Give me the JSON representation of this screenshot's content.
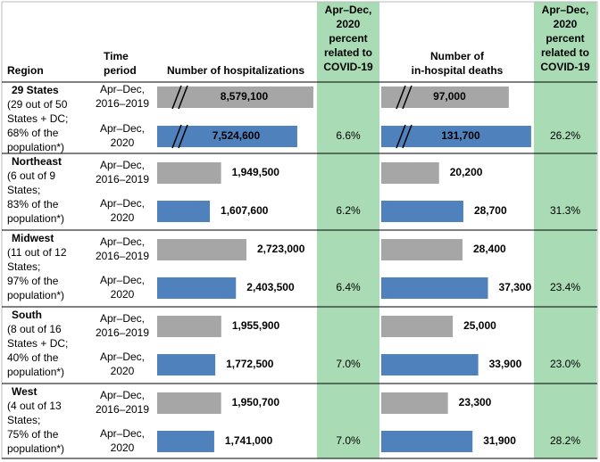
{
  "header": {
    "region": "Region",
    "time_period": [
      "Time",
      "period"
    ],
    "hospitalizations": "Number of hospitalizations",
    "hosp_percent": [
      "Apr–Dec,",
      "2020",
      "percent",
      "related to",
      "COVID-19"
    ],
    "deaths": [
      "Number of",
      "in-hospital deaths"
    ],
    "death_percent": [
      "Apr–Dec,",
      "2020",
      "percent",
      "related to",
      "COVID-19"
    ]
  },
  "colors": {
    "baseline": "#a6a6a6",
    "pandemic": "#4f81bd",
    "percent_column": "#a9dcb5"
  },
  "regions": [
    {
      "name": "29 States",
      "description": [
        "(29 out of 50",
        "States + DC;",
        "68% of the",
        "population*)"
      ],
      "axis_break": true,
      "periods": [
        {
          "label": [
            "Apr–Dec,",
            "2016–2019"
          ],
          "hospitalizations": 8579100,
          "hospitalizations_label": "8,579,100",
          "deaths": 97000,
          "deaths_label": "97,000"
        },
        {
          "label": [
            "Apr–Dec,",
            "2020"
          ],
          "hospitalizations": 7524600,
          "hospitalizations_label": "7,524,600",
          "deaths": 131700,
          "deaths_label": "131,700"
        }
      ],
      "hosp_percent": "6.6%",
      "death_percent": "26.2%"
    },
    {
      "name": "Northeast",
      "description": [
        "(6 out of 9",
        "States;",
        "83% of the",
        "population*)"
      ],
      "axis_break": false,
      "periods": [
        {
          "label": [
            "Apr–Dec,",
            "2016–2019"
          ],
          "hospitalizations": 1949500,
          "hospitalizations_label": "1,949,500",
          "deaths": 20200,
          "deaths_label": "20,200"
        },
        {
          "label": [
            "Apr–Dec,",
            "2020"
          ],
          "hospitalizations": 1607600,
          "hospitalizations_label": "1,607,600",
          "deaths": 28700,
          "deaths_label": "28,700"
        }
      ],
      "hosp_percent": "6.2%",
      "death_percent": "31.3%"
    },
    {
      "name": "Midwest",
      "description": [
        "(11 out of 12",
        "States;",
        "97% of the",
        "population*)"
      ],
      "axis_break": false,
      "periods": [
        {
          "label": [
            "Apr–Dec,",
            "2016–2019"
          ],
          "hospitalizations": 2723000,
          "hospitalizations_label": "2,723,000",
          "deaths": 28400,
          "deaths_label": "28,400"
        },
        {
          "label": [
            "Apr–Dec,",
            "2020"
          ],
          "hospitalizations": 2403500,
          "hospitalizations_label": "2,403,500",
          "deaths": 37300,
          "deaths_label": "37,300"
        }
      ],
      "hosp_percent": "6.4%",
      "death_percent": "23.4%"
    },
    {
      "name": "South",
      "description": [
        "(8 out of 16",
        "States + DC;",
        "40% of the",
        "population*)"
      ],
      "axis_break": false,
      "periods": [
        {
          "label": [
            "Apr–Dec,",
            "2016–2019"
          ],
          "hospitalizations": 1955900,
          "hospitalizations_label": "1,955,900",
          "deaths": 25000,
          "deaths_label": "25,000"
        },
        {
          "label": [
            "Apr–Dec,",
            "2020"
          ],
          "hospitalizations": 1772500,
          "hospitalizations_label": "1,772,500",
          "deaths": 33900,
          "deaths_label": "33,900"
        }
      ],
      "hosp_percent": "7.0%",
      "death_percent": "23.0%"
    },
    {
      "name": "West",
      "description": [
        "(4 out of 13",
        "States;",
        "75% of the",
        "population*)"
      ],
      "axis_break": false,
      "periods": [
        {
          "label": [
            "Apr–Dec,",
            "2016–2019"
          ],
          "hospitalizations": 1950700,
          "hospitalizations_label": "1,950,700",
          "deaths": 23300,
          "deaths_label": "23,300"
        },
        {
          "label": [
            "Apr–Dec,",
            "2020"
          ],
          "hospitalizations": 1741000,
          "hospitalizations_label": "1,741,000",
          "deaths": 31900,
          "deaths_label": "31,900"
        }
      ],
      "hosp_percent": "7.0%",
      "death_percent": "28.2%"
    }
  ]
}
